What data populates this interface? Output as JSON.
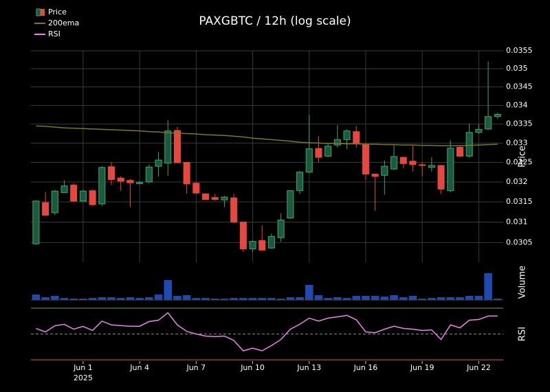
{
  "chart_data": [
    {
      "type": "candlestick",
      "title": "PAXGBTC / 12h (log scale)",
      "name": "Price",
      "ylabel": "Price",
      "log_scale": true,
      "grid": true,
      "legend": "upper left",
      "up_color": "#3aa574",
      "down_color": "#e5483f",
      "x": [
        -1.5,
        -1,
        -0.5,
        0,
        0.5,
        1,
        1.5,
        2,
        2.5,
        3,
        3.5,
        4,
        4.5,
        5,
        5.5,
        6,
        6.5,
        7,
        7.5,
        8,
        8.5,
        9,
        9.5,
        10,
        10.5,
        11,
        11.5,
        12,
        12.5,
        13,
        13.5,
        14,
        14.5,
        15,
        15.5,
        16,
        16.5,
        17,
        17.5,
        18,
        18.5,
        19,
        19.5,
        20,
        20.5,
        21,
        21.5,
        22,
        22.5,
        23
      ],
      "open": [
        0.03047,
        0.03148,
        0.03123,
        0.03173,
        0.03192,
        0.03152,
        0.03178,
        0.03145,
        0.03239,
        0.0321,
        0.03204,
        0.03196,
        0.032,
        0.0324,
        0.03248,
        0.03333,
        0.0325,
        0.03197,
        0.0317,
        0.03161,
        0.03155,
        0.0316,
        0.031,
        0.03035,
        0.03055,
        0.03037,
        0.03062,
        0.0311,
        0.03178,
        0.03225,
        0.03286,
        0.03266,
        0.03295,
        0.03309,
        0.0333,
        0.03296,
        0.0322,
        0.03217,
        0.03233,
        0.03263,
        0.03253,
        0.03244,
        0.03237,
        0.03242,
        0.03178,
        0.03289,
        0.03266,
        0.03328,
        0.03337,
        0.0337
      ],
      "high": [
        0.03154,
        0.03175,
        0.0318,
        0.03204,
        0.03197,
        0.0318,
        0.03181,
        0.0324,
        0.0325,
        0.03215,
        0.03207,
        0.03202,
        0.03245,
        0.03277,
        0.0336,
        0.03343,
        0.0325,
        0.03199,
        0.03172,
        0.0317,
        0.03165,
        0.0317,
        0.031,
        0.03055,
        0.03092,
        0.03072,
        0.03122,
        0.0318,
        0.03228,
        0.03375,
        0.03318,
        0.03297,
        0.03347,
        0.03336,
        0.03345,
        0.033,
        0.0322,
        0.03255,
        0.03296,
        0.03265,
        0.03293,
        0.0325,
        0.03263,
        0.03244,
        0.03307,
        0.03293,
        0.03352,
        0.0335,
        0.0352,
        0.0338
      ],
      "low": [
        0.03045,
        0.03114,
        0.03117,
        0.03172,
        0.0315,
        0.0315,
        0.0314,
        0.0314,
        0.03192,
        0.03177,
        0.03137,
        0.03194,
        0.03197,
        0.03214,
        0.03216,
        0.03249,
        0.0317,
        0.0317,
        0.03156,
        0.03153,
        0.03137,
        0.03097,
        0.03028,
        0.03027,
        0.0303,
        0.03035,
        0.03052,
        0.03108,
        0.0317,
        0.03223,
        0.0325,
        0.03263,
        0.03288,
        0.03284,
        0.03288,
        0.03205,
        0.03128,
        0.03168,
        0.0323,
        0.03235,
        0.03227,
        0.03214,
        0.03226,
        0.0317,
        0.03174,
        0.03263,
        0.03262,
        0.03324,
        0.03334,
        0.03365
      ],
      "close": [
        0.03152,
        0.03117,
        0.03177,
        0.0319,
        0.03152,
        0.03177,
        0.03143,
        0.03237,
        0.03206,
        0.03202,
        0.03198,
        0.03199,
        0.03238,
        0.03256,
        0.03332,
        0.03249,
        0.03195,
        0.03172,
        0.03156,
        0.03156,
        0.03162,
        0.031,
        0.03035,
        0.03053,
        0.03032,
        0.03065,
        0.03105,
        0.03178,
        0.03225,
        0.03285,
        0.03263,
        0.03292,
        0.03309,
        0.03332,
        0.033,
        0.0322,
        0.03214,
        0.0324,
        0.03265,
        0.03247,
        0.03244,
        0.03242,
        0.03242,
        0.03182,
        0.03287,
        0.03266,
        0.03328,
        0.03336,
        0.0337,
        0.03376
      ],
      "series": [
        {
          "name": "200ema",
          "color": "#7d7a1e",
          "values": [
            0.03345,
            0.03344,
            0.03342,
            0.0334,
            0.03339,
            0.03338,
            0.03337,
            0.03336,
            0.03335,
            0.03334,
            0.03333,
            0.03332,
            0.0333,
            0.03329,
            0.03327,
            0.03326,
            0.03325,
            0.03324,
            0.03322,
            0.03321,
            0.0332,
            0.03318,
            0.03316,
            0.03313,
            0.03311,
            0.03309,
            0.03307,
            0.03305,
            0.03302,
            0.03301,
            0.033,
            0.03299,
            0.03299,
            0.03298,
            0.03298,
            0.03297,
            0.03297,
            0.03296,
            0.03296,
            0.03295,
            0.03295,
            0.03294,
            0.03294,
            0.03293,
            0.03293,
            0.03293,
            0.03294,
            0.03295,
            0.03296,
            0.03297
          ]
        }
      ],
      "ylim": [
        0.03003,
        0.0355
      ],
      "yticks": [
        0.0305,
        0.031,
        0.0315,
        0.032,
        0.0325,
        0.033,
        0.0335,
        0.034,
        0.0345,
        0.035,
        0.0355
      ],
      "xlim": [
        -1.77,
        23.3
      ],
      "xticks": [
        {
          "value": 1,
          "label": "Jun 1"
        },
        {
          "value": 4,
          "label": "Jun 4"
        },
        {
          "value": 7,
          "label": "Jun 7"
        },
        {
          "value": 10,
          "label": "Jun 10"
        },
        {
          "value": 13,
          "label": "Jun 13"
        },
        {
          "value": 16,
          "label": "Jun 16"
        },
        {
          "value": 19,
          "label": "Jun 19"
        },
        {
          "value": 22,
          "label": "Jun 22"
        }
      ],
      "x_sublabel": "2025"
    },
    {
      "type": "bar",
      "ylabel": "Volume",
      "color": "#1f4bb0",
      "ylim": [
        0,
        52
      ],
      "values": [
        8,
        4,
        6,
        3,
        2,
        2,
        3,
        4,
        4,
        3,
        4,
        3,
        4,
        8,
        29,
        6,
        7,
        3,
        3,
        2,
        2,
        3,
        3,
        3,
        3,
        3,
        2,
        4,
        4,
        22,
        7,
        3,
        4,
        3,
        6,
        6,
        6,
        5,
        7,
        4,
        6,
        2,
        3,
        4,
        4,
        4,
        6,
        6,
        39,
        2
      ]
    },
    {
      "type": "line",
      "ylabel": "RSI",
      "ylim": [
        29,
        71
      ],
      "levels": [
        30,
        50,
        70
      ],
      "level_colors": [
        "#e0527a",
        "#888888",
        "#7a9a5a"
      ],
      "series": [
        {
          "name": "RSI",
          "color": "#ee82ee",
          "values": [
            54.3,
            51.6,
            56.4,
            57.5,
            53.7,
            55.9,
            52.7,
            60,
            57,
            56.5,
            56,
            56,
            59.6,
            60.7,
            66.5,
            57,
            52,
            50,
            48.4,
            47.9,
            48.4,
            45,
            37,
            39,
            37,
            41,
            45.7,
            53.7,
            57.5,
            62.3,
            60,
            62.3,
            63.3,
            64.4,
            61,
            51.6,
            51,
            53.7,
            56,
            54.3,
            53.7,
            52.7,
            53.2,
            45.7,
            57,
            54.8,
            60.7,
            61.2,
            63.9,
            64
          ]
        }
      ]
    }
  ]
}
